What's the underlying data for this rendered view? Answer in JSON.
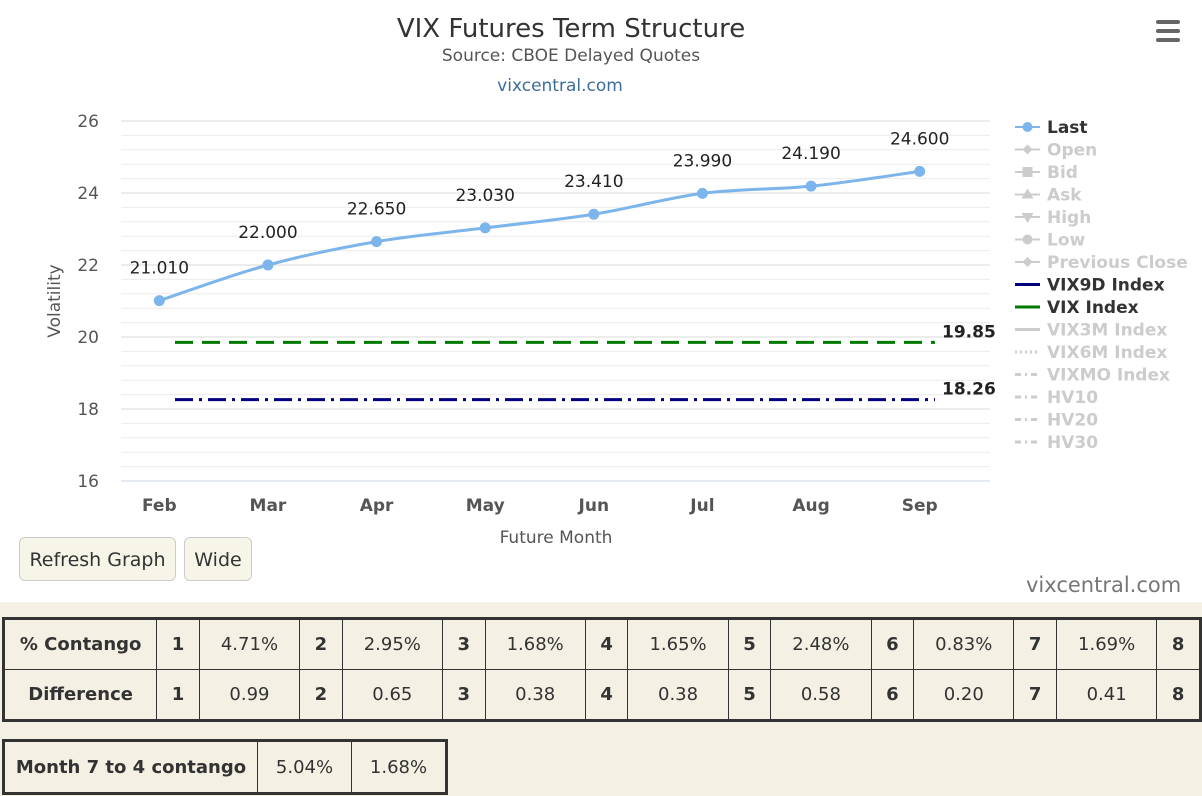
{
  "chart_data": {
    "type": "line",
    "title": "VIX Futures Term Structure",
    "subtitle": "Source: CBOE Delayed Quotes",
    "credit": "vixcentral.com",
    "xlabel": "Future Month",
    "ylabel": "Volatility",
    "categories": [
      "Feb",
      "Mar",
      "Apr",
      "May",
      "Jun",
      "Jul",
      "Aug",
      "Sep"
    ],
    "ylim": [
      16,
      26
    ],
    "yticks": [
      "16",
      "18",
      "20",
      "22",
      "24",
      "26"
    ],
    "grid": true,
    "legend_position": "right",
    "series": [
      {
        "name": "Last",
        "values": [
          21.01,
          22.0,
          22.65,
          23.03,
          23.41,
          23.99,
          24.19,
          24.6
        ],
        "labels": [
          "21.010",
          "22.000",
          "22.650",
          "23.030",
          "23.410",
          "23.990",
          "24.190",
          "24.600"
        ],
        "color": "#7cb5ec"
      },
      {
        "name": "VIX9D Index",
        "value": 18.26,
        "label": "18.26",
        "color": "#000080",
        "dash": "dash-dot"
      },
      {
        "name": "VIX Index",
        "value": 19.85,
        "label": "19.85",
        "color": "#007a00",
        "dash": "dashed"
      }
    ],
    "legend": [
      {
        "name": "Last",
        "active": true,
        "symbol": "circle-line",
        "color": "#7cb5ec"
      },
      {
        "name": "Open",
        "active": false,
        "symbol": "diamond-line"
      },
      {
        "name": "Bid",
        "active": false,
        "symbol": "square-line"
      },
      {
        "name": "Ask",
        "active": false,
        "symbol": "triangle-line"
      },
      {
        "name": "High",
        "active": false,
        "symbol": "triangle-down-line"
      },
      {
        "name": "Low",
        "active": false,
        "symbol": "circle-line"
      },
      {
        "name": "Previous Close",
        "active": false,
        "symbol": "diamond-line"
      },
      {
        "name": "VIX9D Index",
        "active": true,
        "symbol": "line",
        "color": "#000080"
      },
      {
        "name": "VIX Index",
        "active": true,
        "symbol": "line",
        "color": "#007a00"
      },
      {
        "name": "VIX3M Index",
        "active": false,
        "symbol": "line"
      },
      {
        "name": "VIX6M Index",
        "active": false,
        "symbol": "dotted"
      },
      {
        "name": "VIXMO Index",
        "active": false,
        "symbol": "dash-dot"
      },
      {
        "name": "HV10",
        "active": false,
        "symbol": "dash-dot"
      },
      {
        "name": "HV20",
        "active": false,
        "symbol": "dash-dot"
      },
      {
        "name": "HV30",
        "active": false,
        "symbol": "dash-dot"
      }
    ]
  },
  "buttons": {
    "refresh": "Refresh Graph",
    "wide": "Wide"
  },
  "credit_bottom": "vixcentral.com",
  "contango_table": {
    "rows": [
      {
        "label": "% Contango",
        "cells": [
          [
            "1",
            "4.71%"
          ],
          [
            "2",
            "2.95%"
          ],
          [
            "3",
            "1.68%"
          ],
          [
            "4",
            "1.65%"
          ],
          [
            "5",
            "2.48%"
          ],
          [
            "6",
            "0.83%"
          ],
          [
            "7",
            "1.69%"
          ],
          [
            "8",
            ""
          ]
        ]
      },
      {
        "label": "Difference",
        "cells": [
          [
            "1",
            "0.99"
          ],
          [
            "2",
            "0.65"
          ],
          [
            "3",
            "0.38"
          ],
          [
            "4",
            "0.38"
          ],
          [
            "5",
            "0.58"
          ],
          [
            "6",
            "0.20"
          ],
          [
            "7",
            "0.41"
          ],
          [
            "8",
            ""
          ]
        ]
      }
    ]
  },
  "month_table": {
    "label": "Month 7 to 4 contango",
    "values": [
      "5.04%",
      "1.68%"
    ]
  }
}
